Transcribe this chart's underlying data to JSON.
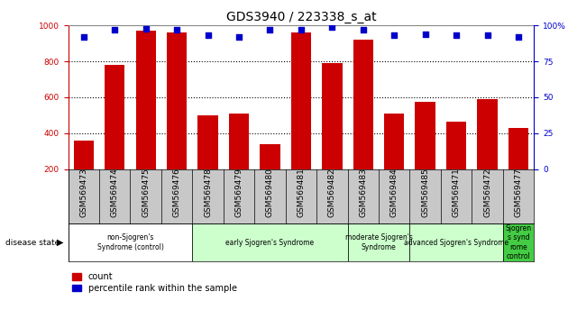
{
  "title": "GDS3940 / 223338_s_at",
  "samples": [
    "GSM569473",
    "GSM569474",
    "GSM569475",
    "GSM569476",
    "GSM569478",
    "GSM569479",
    "GSM569480",
    "GSM569481",
    "GSM569482",
    "GSM569483",
    "GSM569484",
    "GSM569485",
    "GSM569471",
    "GSM569472",
    "GSM569477"
  ],
  "counts": [
    360,
    780,
    970,
    960,
    500,
    510,
    340,
    960,
    790,
    920,
    510,
    575,
    465,
    590,
    430
  ],
  "percentile": [
    92,
    97,
    98,
    97,
    93,
    92,
    97,
    97,
    99,
    97,
    93,
    94,
    93,
    93,
    92
  ],
  "ylim_left": [
    200,
    1000
  ],
  "ylim_right": [
    0,
    100
  ],
  "yticks_left": [
    200,
    400,
    600,
    800,
    1000
  ],
  "yticks_right": [
    0,
    25,
    50,
    75,
    100
  ],
  "ytick_labels_right": [
    "0",
    "25",
    "50",
    "75",
    "100%"
  ],
  "bar_color": "#cc0000",
  "dot_color": "#0000cc",
  "grid_color": "#000000",
  "bg_color": "#ffffff",
  "tick_area_color": "#c8c8c8",
  "groups": [
    {
      "label": "non-Sjogren's\nSyndrome (control)",
      "start": 0,
      "end": 3,
      "color": "#ffffff"
    },
    {
      "label": "early Sjogren's Syndrome",
      "start": 4,
      "end": 8,
      "color": "#ccffcc"
    },
    {
      "label": "moderate Sjogren's\nSyndrome",
      "start": 9,
      "end": 10,
      "color": "#ccffcc"
    },
    {
      "label": "advanced Sjogren's Syndrome",
      "start": 11,
      "end": 13,
      "color": "#ccffcc"
    },
    {
      "label": "Sjogren\ns synd\nrome\ncontrol",
      "start": 14,
      "end": 14,
      "color": "#44cc44"
    }
  ],
  "left_axis_color": "#cc0000",
  "right_axis_color": "#0000cc",
  "title_fontsize": 10,
  "tick_fontsize": 6.5,
  "legend_fontsize": 7,
  "group_label_fontsize": 5.5
}
